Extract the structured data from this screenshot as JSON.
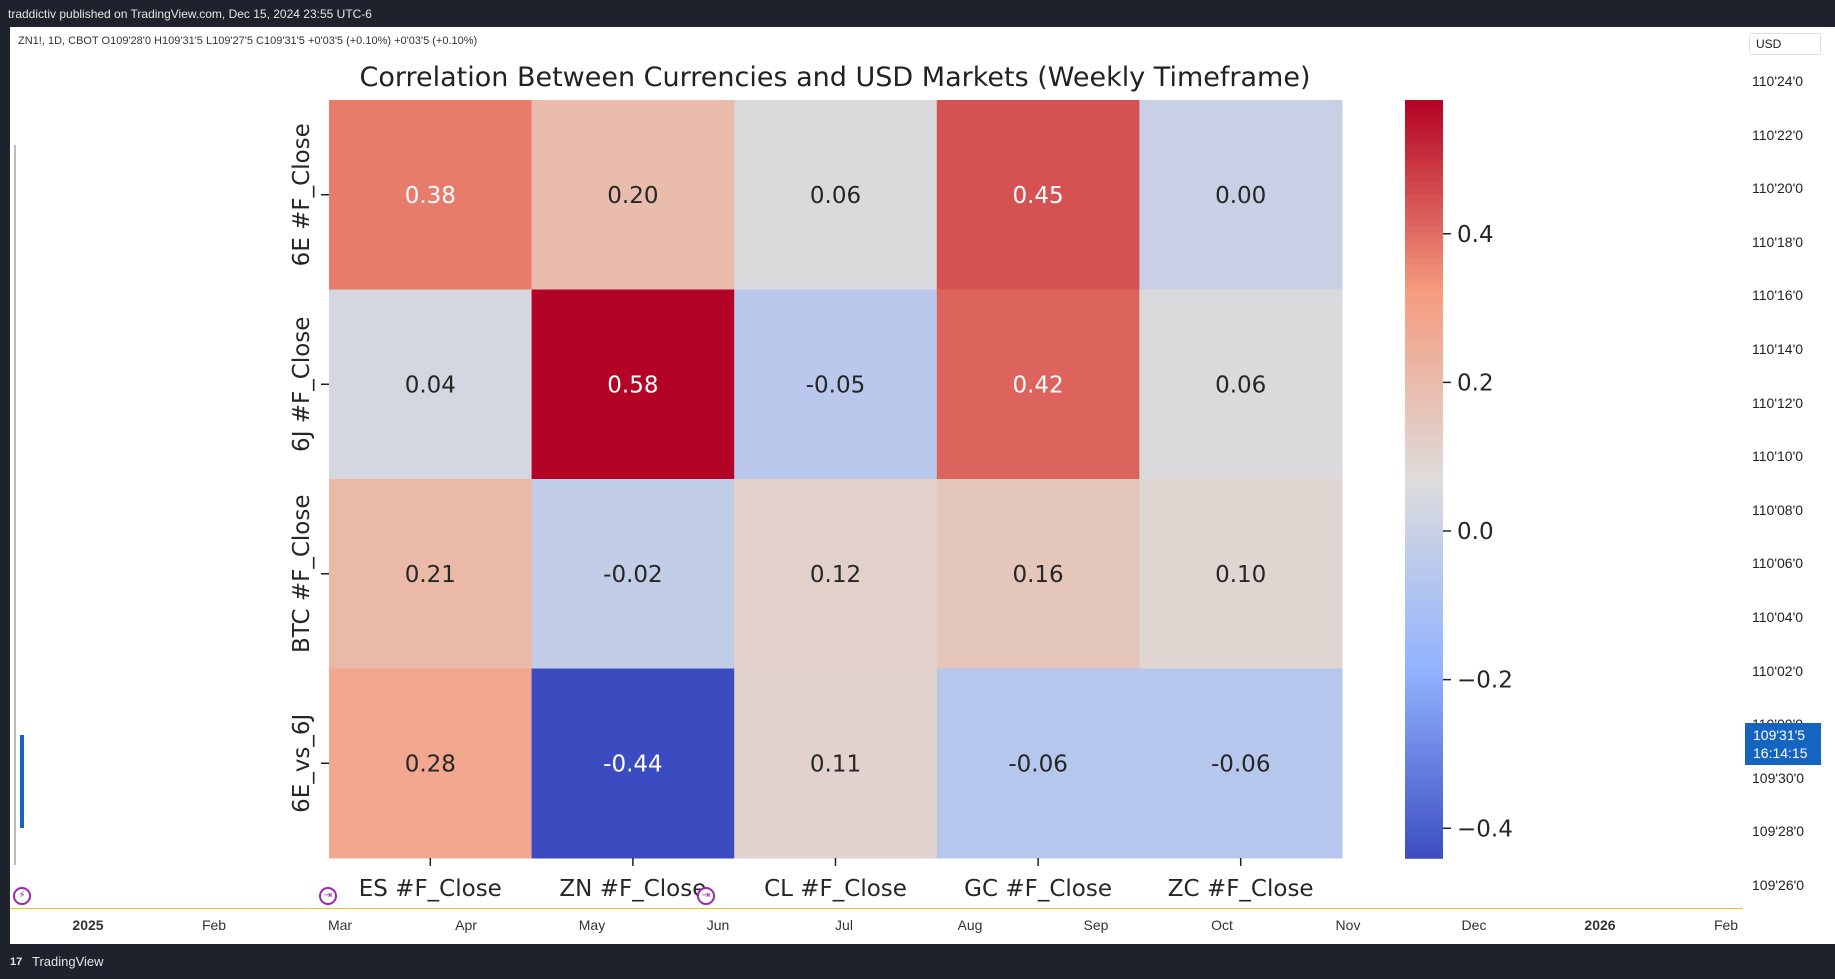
{
  "header": {
    "publisher_line": "traddictiv published on TradingView.com, Dec 15, 2024 23:55 UTC-6"
  },
  "symbol_info": "ZN1!, 1D, CBOT  O109'28'0  H109'31'5  L109'27'5  C109'31'5  +0'03'5 (+0.10%)  +0'03'5 (+0.10%)",
  "price_axis": {
    "currency": "USD",
    "ticks": [
      "110'24'0",
      "110'22'0",
      "110'20'0",
      "110'18'0",
      "110'16'0",
      "110'14'0",
      "110'12'0",
      "110'10'0",
      "110'08'0",
      "110'06'0",
      "110'04'0",
      "110'02'0",
      "110'00'0",
      "109'30'0",
      "109'28'0",
      "109'26'0"
    ],
    "current_price": "109'31'5",
    "countdown": "16:14:15",
    "current_price_color": "#1565c0"
  },
  "time_axis": {
    "ticks": [
      {
        "label": "2025",
        "bold": true
      },
      {
        "label": "Feb",
        "bold": false
      },
      {
        "label": "Mar",
        "bold": false
      },
      {
        "label": "Apr",
        "bold": false
      },
      {
        "label": "May",
        "bold": false
      },
      {
        "label": "Jun",
        "bold": false
      },
      {
        "label": "Jul",
        "bold": false
      },
      {
        "label": "Aug",
        "bold": false
      },
      {
        "label": "Sep",
        "bold": false
      },
      {
        "label": "Oct",
        "bold": false
      },
      {
        "label": "Nov",
        "bold": false
      },
      {
        "label": "Dec",
        "bold": false
      },
      {
        "label": "2026",
        "bold": true
      },
      {
        "label": "Feb",
        "bold": false
      }
    ]
  },
  "footer": {
    "brand": "TradingView",
    "logo_text": "17"
  },
  "chart_data": {
    "type": "heatmap",
    "title": "Correlation Between Currencies and USD Markets (Weekly Timeframe)",
    "columns": [
      "ES #F_Close",
      "ZN #F_Close",
      "CL #F_Close",
      "GC #F_Close",
      "ZC #F_Close"
    ],
    "rows": [
      "6E #F_Close",
      "6J #F_Close",
      "BTC #F_Close",
      "6E_vs_6J"
    ],
    "values": [
      [
        0.38,
        0.2,
        0.06,
        0.45,
        0.0
      ],
      [
        0.04,
        0.58,
        -0.05,
        0.42,
        0.06
      ],
      [
        0.21,
        -0.02,
        0.12,
        0.16,
        0.1
      ],
      [
        0.28,
        -0.44,
        0.11,
        -0.06,
        -0.06
      ]
    ],
    "colormap": "coolwarm",
    "vmin": -0.44,
    "vmax": 0.58,
    "colorbar_ticks": [
      0.4,
      0.2,
      0.0,
      -0.2,
      -0.4
    ],
    "colorbar_tick_labels": [
      "0.4",
      "0.2",
      "0.0",
      "−0.2",
      "−0.4"
    ]
  }
}
